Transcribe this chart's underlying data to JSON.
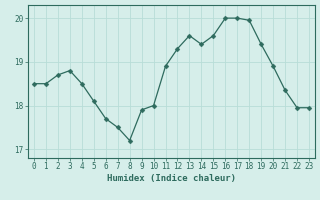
{
  "x": [
    0,
    1,
    2,
    3,
    4,
    5,
    6,
    7,
    8,
    9,
    10,
    11,
    12,
    13,
    14,
    15,
    16,
    17,
    18,
    19,
    20,
    21,
    22,
    23
  ],
  "y": [
    18.5,
    18.5,
    18.7,
    18.8,
    18.5,
    18.1,
    17.7,
    17.5,
    17.2,
    17.9,
    18.0,
    18.9,
    19.3,
    19.6,
    19.4,
    19.6,
    20.0,
    20.0,
    19.95,
    19.4,
    18.9,
    18.35,
    17.95,
    17.95
  ],
  "line_color": "#2e6b5e",
  "marker": "D",
  "marker_size": 2.5,
  "bg_color": "#d6eeea",
  "grid_color": "#b8ddd7",
  "xlabel": "Humidex (Indice chaleur)",
  "ylim": [
    16.8,
    20.3
  ],
  "xlim": [
    -0.5,
    23.5
  ],
  "yticks": [
    17,
    18,
    19,
    20
  ],
  "xticks": [
    0,
    1,
    2,
    3,
    4,
    5,
    6,
    7,
    8,
    9,
    10,
    11,
    12,
    13,
    14,
    15,
    16,
    17,
    18,
    19,
    20,
    21,
    22,
    23
  ],
  "tick_color": "#2e6b5e",
  "label_fontsize": 6.5,
  "tick_fontsize": 5.5,
  "spine_color": "#2e6b5e"
}
